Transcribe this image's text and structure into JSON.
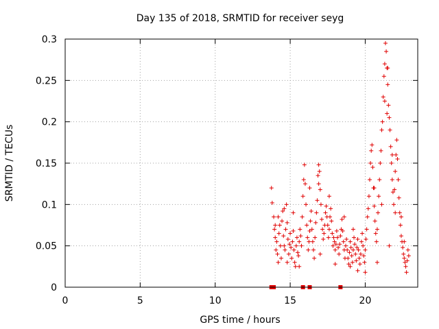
{
  "chart_data": {
    "type": "scatter",
    "title": "Day 135 of 2018, SRMTID for receiver seyg",
    "xlabel": "GPS time / hours",
    "ylabel": "SRMTID / TECUs",
    "xlim": [
      0,
      23.5
    ],
    "ylim": [
      0,
      0.3
    ],
    "xticks": [
      0,
      5,
      10,
      15,
      20
    ],
    "xtick_labels": [
      "0",
      "5",
      "10",
      "15",
      "20"
    ],
    "yticks": [
      0,
      0.05,
      0.1,
      0.15,
      0.2,
      0.25,
      0.3
    ],
    "ytick_labels": [
      "0",
      "0.05",
      "0.1",
      "0.15",
      "0.2",
      "0.25",
      "0.3"
    ],
    "grid": true,
    "marker": "plus",
    "color": "#e00000",
    "series": [
      {
        "name": "SRMTID",
        "points": [
          [
            13.75,
            0.12
          ],
          [
            13.8,
            0.102
          ],
          [
            13.9,
            0.085
          ],
          [
            13.95,
            0.07
          ],
          [
            14.0,
            0.06
          ],
          [
            14.05,
            0.045
          ],
          [
            14.1,
            0.055
          ],
          [
            14.15,
            0.04
          ],
          [
            14.2,
            0.03
          ],
          [
            14.25,
            0.065
          ],
          [
            14.3,
            0.075
          ],
          [
            14.35,
            0.05
          ],
          [
            14.4,
            0.035
          ],
          [
            14.45,
            0.08
          ],
          [
            14.5,
            0.092
          ],
          [
            14.55,
            0.062
          ],
          [
            14.6,
            0.05
          ],
          [
            14.65,
            0.045
          ],
          [
            14.7,
            0.07
          ],
          [
            14.75,
            0.1
          ],
          [
            14.8,
            0.078
          ],
          [
            14.85,
            0.058
          ],
          [
            14.9,
            0.04
          ],
          [
            14.95,
            0.052
          ],
          [
            15.0,
            0.065
          ],
          [
            15.05,
            0.048
          ],
          [
            15.1,
            0.035
          ],
          [
            15.15,
            0.055
          ],
          [
            15.2,
            0.068
          ],
          [
            15.25,
            0.045
          ],
          [
            15.3,
            0.03
          ],
          [
            15.35,
            0.025
          ],
          [
            15.4,
            0.05
          ],
          [
            15.45,
            0.06
          ],
          [
            15.5,
            0.042
          ],
          [
            15.55,
            0.038
          ],
          [
            15.6,
            0.055
          ],
          [
            15.65,
            0.07
          ],
          [
            15.7,
            0.062
          ],
          [
            15.75,
            0.05
          ],
          [
            15.8,
            0.085
          ],
          [
            15.85,
            0.11
          ],
          [
            15.9,
            0.13
          ],
          [
            15.95,
            0.148
          ],
          [
            16.0,
            0.125
          ],
          [
            16.05,
            0.1
          ],
          [
            16.1,
            0.075
          ],
          [
            16.15,
            0.06
          ],
          [
            16.2,
            0.045
          ],
          [
            16.25,
            0.055
          ],
          [
            16.3,
            0.068
          ],
          [
            16.35,
            0.08
          ],
          [
            16.4,
            0.092
          ],
          [
            16.45,
            0.07
          ],
          [
            16.5,
            0.055
          ],
          [
            16.55,
            0.045
          ],
          [
            16.6,
            0.035
          ],
          [
            16.65,
            0.06
          ],
          [
            16.7,
            0.078
          ],
          [
            16.75,
            0.09
          ],
          [
            16.8,
            0.105
          ],
          [
            16.85,
            0.135
          ],
          [
            16.9,
            0.148
          ],
          [
            16.95,
            0.14
          ],
          [
            17.0,
            0.118
          ],
          [
            17.05,
            0.1
          ],
          [
            17.1,
            0.082
          ],
          [
            17.15,
            0.07
          ],
          [
            17.2,
            0.058
          ],
          [
            17.25,
            0.065
          ],
          [
            17.3,
            0.075
          ],
          [
            17.35,
            0.09
          ],
          [
            17.4,
            0.098
          ],
          [
            17.45,
            0.085
          ],
          [
            17.5,
            0.075
          ],
          [
            17.55,
            0.06
          ],
          [
            17.6,
            0.07
          ],
          [
            17.65,
            0.085
          ],
          [
            17.7,
            0.095
          ],
          [
            17.75,
            0.08
          ],
          [
            17.8,
            0.065
          ],
          [
            17.85,
            0.05
          ],
          [
            17.9,
            0.06
          ],
          [
            17.95,
            0.055
          ],
          [
            18.0,
            0.045
          ],
          [
            18.05,
            0.052
          ],
          [
            18.1,
            0.068
          ],
          [
            18.15,
            0.06
          ],
          [
            18.2,
            0.048
          ],
          [
            18.25,
            0.04
          ],
          [
            18.3,
            0.052
          ],
          [
            18.35,
            0.062
          ],
          [
            18.4,
            0.07
          ],
          [
            18.45,
            0.082
          ],
          [
            18.5,
            0.068
          ],
          [
            18.55,
            0.055
          ],
          [
            18.6,
            0.045
          ],
          [
            18.65,
            0.035
          ],
          [
            18.7,
            0.05
          ],
          [
            18.75,
            0.058
          ],
          [
            18.8,
            0.045
          ],
          [
            18.85,
            0.035
          ],
          [
            18.9,
            0.028
          ],
          [
            18.95,
            0.042
          ],
          [
            19.0,
            0.055
          ],
          [
            19.05,
            0.048
          ],
          [
            19.1,
            0.038
          ],
          [
            19.15,
            0.03
          ],
          [
            19.2,
            0.045
          ],
          [
            19.25,
            0.06
          ],
          [
            19.3,
            0.052
          ],
          [
            19.35,
            0.04
          ],
          [
            19.4,
            0.032
          ],
          [
            19.45,
            0.048
          ],
          [
            19.5,
            0.058
          ],
          [
            19.55,
            0.045
          ],
          [
            19.6,
            0.035
          ],
          [
            19.65,
            0.028
          ],
          [
            19.7,
            0.04
          ],
          [
            19.75,
            0.055
          ],
          [
            19.8,
            0.065
          ],
          [
            19.85,
            0.05
          ],
          [
            19.9,
            0.038
          ],
          [
            19.95,
            0.03
          ],
          [
            20.0,
            0.045
          ],
          [
            20.05,
            0.058
          ],
          [
            20.1,
            0.07
          ],
          [
            20.15,
            0.085
          ],
          [
            20.2,
            0.095
          ],
          [
            20.25,
            0.11
          ],
          [
            20.3,
            0.13
          ],
          [
            20.35,
            0.15
          ],
          [
            20.4,
            0.165
          ],
          [
            20.45,
            0.172
          ],
          [
            20.5,
            0.145
          ],
          [
            20.55,
            0.12
          ],
          [
            20.6,
            0.098
          ],
          [
            20.65,
            0.08
          ],
          [
            20.7,
            0.065
          ],
          [
            20.75,
            0.055
          ],
          [
            20.8,
            0.07
          ],
          [
            20.85,
            0.09
          ],
          [
            20.9,
            0.11
          ],
          [
            20.95,
            0.13
          ],
          [
            21.0,
            0.15
          ],
          [
            21.05,
            0.165
          ],
          [
            21.1,
            0.19
          ],
          [
            21.15,
            0.2
          ],
          [
            21.2,
            0.23
          ],
          [
            21.25,
            0.255
          ],
          [
            21.3,
            0.27
          ],
          [
            21.35,
            0.295
          ],
          [
            21.4,
            0.285
          ],
          [
            21.45,
            0.265
          ],
          [
            21.5,
            0.245
          ],
          [
            21.55,
            0.22
          ],
          [
            21.6,
            0.205
          ],
          [
            21.65,
            0.19
          ],
          [
            21.7,
            0.17
          ],
          [
            21.75,
            0.15
          ],
          [
            21.8,
            0.13
          ],
          [
            21.85,
            0.115
          ],
          [
            21.9,
            0.1
          ],
          [
            21.95,
            0.118
          ],
          [
            22.0,
            0.14
          ],
          [
            22.05,
            0.16
          ],
          [
            22.1,
            0.178
          ],
          [
            22.15,
            0.155
          ],
          [
            22.2,
            0.13
          ],
          [
            22.25,
            0.108
          ],
          [
            22.3,
            0.09
          ],
          [
            22.35,
            0.075
          ],
          [
            22.4,
            0.062
          ],
          [
            22.45,
            0.055
          ],
          [
            22.5,
            0.048
          ],
          [
            22.55,
            0.04
          ],
          [
            22.6,
            0.035
          ],
          [
            22.65,
            0.03
          ],
          [
            22.7,
            0.025
          ],
          [
            22.75,
            0.018
          ],
          [
            22.8,
            0.032
          ],
          [
            22.85,
            0.045
          ],
          [
            22.9,
            0.038
          ],
          [
            14.2,
            0.085
          ],
          [
            14.6,
            0.095
          ],
          [
            15.2,
            0.09
          ],
          [
            16.3,
            0.12
          ],
          [
            16.9,
            0.125
          ],
          [
            17.6,
            0.11
          ],
          [
            18.6,
            0.085
          ],
          [
            19.2,
            0.07
          ],
          [
            20.6,
            0.12
          ],
          [
            21.1,
            0.1
          ],
          [
            21.8,
            0.16
          ],
          [
            22.0,
            0.09
          ],
          [
            22.4,
            0.085
          ],
          [
            14.0,
            0.075
          ],
          [
            14.8,
            0.03
          ],
          [
            15.6,
            0.025
          ],
          [
            17.0,
            0.04
          ],
          [
            18.0,
            0.028
          ],
          [
            19.0,
            0.025
          ],
          [
            19.5,
            0.02
          ],
          [
            20.0,
            0.018
          ],
          [
            20.8,
            0.03
          ],
          [
            21.6,
            0.05
          ],
          [
            22.6,
            0.055
          ],
          [
            21.3,
            0.225
          ],
          [
            21.5,
            0.265
          ],
          [
            21.45,
            0.21
          ]
        ]
      }
    ],
    "zero_markers": [
      13.75,
      13.9,
      15.85,
      16.3,
      18.35
    ]
  }
}
